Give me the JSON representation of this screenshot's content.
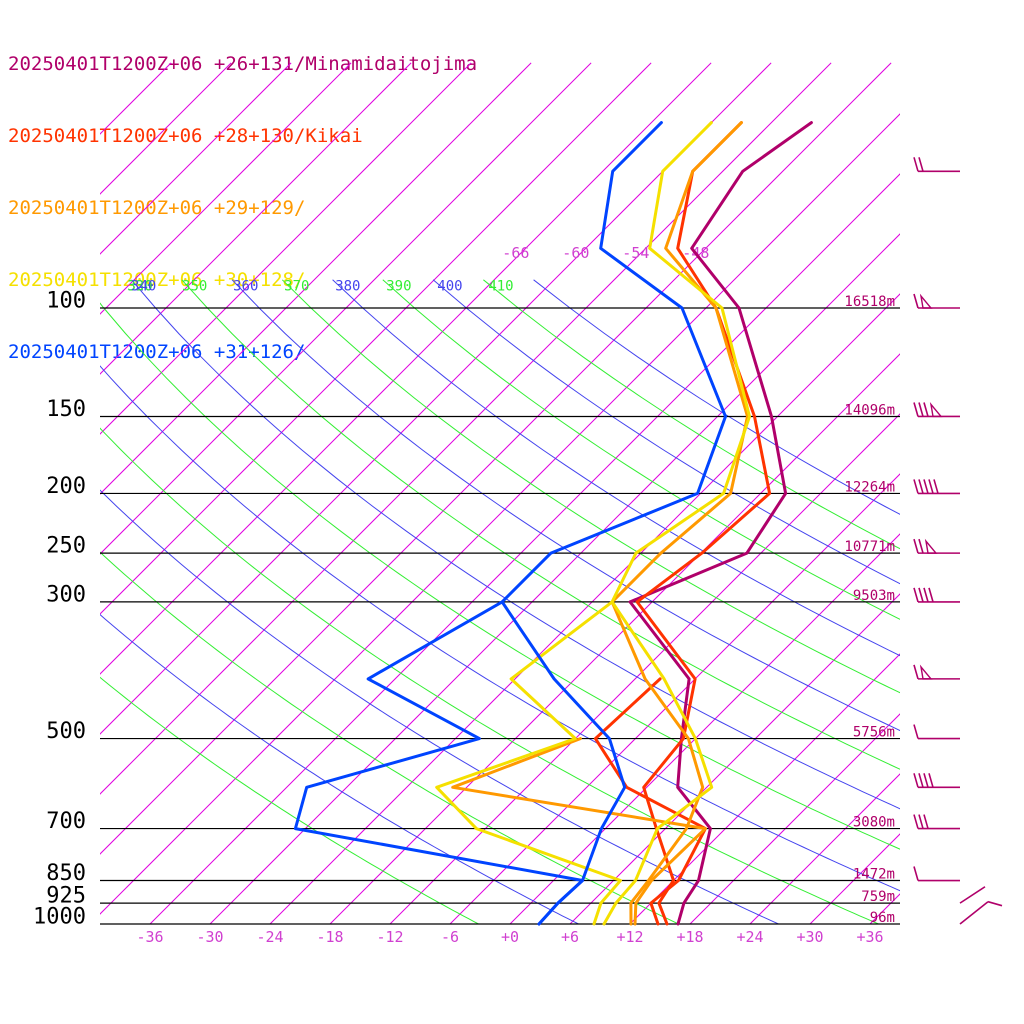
{
  "chart_data": {
    "type": "line",
    "legend": [
      {
        "time": "20250401T1200Z+06",
        "loc": "+26+131/Minamidaitojima",
        "color": "#b0006a"
      },
      {
        "time": "20250401T1200Z+06",
        "loc": "+28+130/Kikai",
        "color": "#ff3300"
      },
      {
        "time": "20250401T1200Z+06",
        "loc": "+29+129/",
        "color": "#ff9900"
      },
      {
        "time": "20250401T1200Z+06",
        "loc": "+30+128/",
        "color": "#f5e000"
      },
      {
        "time": "20250401T1200Z+06",
        "loc": "+31+126/",
        "color": "#0044ff"
      }
    ],
    "pressure_levels": [
      {
        "p": 100,
        "label": "100",
        "height": "16518m"
      },
      {
        "p": 150,
        "label": "150",
        "height": "14096m"
      },
      {
        "p": 200,
        "label": "200",
        "height": "12264m"
      },
      {
        "p": 250,
        "label": "250",
        "height": "10771m"
      },
      {
        "p": 300,
        "label": "300",
        "height": "9503m"
      },
      {
        "p": 500,
        "label": "500",
        "height": "5756m"
      },
      {
        "p": 700,
        "label": "700",
        "height": "3080m"
      },
      {
        "p": 850,
        "label": "850",
        "height": "1472m"
      },
      {
        "p": 925,
        "label": "925",
        "height": "759m"
      },
      {
        "p": 1000,
        "label": "1000",
        "height": "96m"
      }
    ],
    "x_ticks": [
      "-36",
      "-30",
      "-24",
      "-18",
      "-12",
      "-6",
      "+0",
      "+6",
      "+12",
      "+18",
      "+24",
      "+30",
      "+36"
    ],
    "x_tick_values": [
      -36,
      -30,
      -24,
      -18,
      -12,
      -6,
      0,
      6,
      12,
      18,
      24,
      30,
      36
    ],
    "upper_isotherm_labels": [
      "-66",
      "-60",
      "-54",
      "-48"
    ],
    "theta_labels": [
      {
        "text": "320",
        "kind": "dry"
      },
      {
        "text": "330",
        "kind": "moist"
      },
      {
        "text": "340",
        "kind": "dry"
      },
      {
        "text": "350",
        "kind": "moist"
      },
      {
        "text": "360",
        "kind": "dry"
      },
      {
        "text": "370",
        "kind": "moist"
      },
      {
        "text": "380",
        "kind": "dry"
      },
      {
        "text": "390",
        "kind": "moist"
      },
      {
        "text": "400",
        "kind": "dry"
      },
      {
        "text": "410",
        "kind": "moist"
      }
    ],
    "colors": {
      "isotherm": "#e000e0",
      "dry_adiabat": "#4444ee",
      "moist_adiabat": "#33ee33",
      "isobar": "#000000",
      "tick_label": "#d040d0",
      "height_label": "#b0006a",
      "pressure_label": "#000000",
      "barb": "#b0006a"
    },
    "series": [
      {
        "name": "+26+131/Minamidaitojima",
        "color": "#b0006a",
        "temperature": [
          [
            1000,
            16.8
          ],
          [
            925,
            15.3
          ],
          [
            850,
            14.5
          ],
          [
            700,
            10.5
          ],
          [
            600,
            3.1
          ],
          [
            500,
            -1.4
          ],
          [
            400,
            -6.6
          ],
          [
            300,
            -20.2
          ]
        ],
        "dewpoint": [
          [
            300,
            -20.2
          ],
          [
            250,
            -13.4
          ],
          [
            200,
            -15.5
          ],
          [
            150,
            -24.6
          ],
          [
            100,
            -38.7
          ],
          [
            80,
            -49.4
          ],
          [
            60,
            -52.0
          ],
          [
            50,
            -50.0
          ]
        ]
      },
      {
        "name": "+28+130/Kikai",
        "color": "#ff3300",
        "temperature": [
          [
            1000,
            15.7
          ],
          [
            925,
            12.8
          ],
          [
            850,
            12.0
          ],
          [
            700,
            5.1
          ],
          [
            600,
            -0.3
          ],
          [
            500,
            -1.2
          ],
          [
            400,
            -6.0
          ],
          [
            300,
            -19.5
          ],
          [
            250,
            -17.9
          ],
          [
            200,
            -17.1
          ],
          [
            150,
            -26.3
          ],
          [
            100,
            -41.0
          ],
          [
            80,
            -50.8
          ],
          [
            60,
            -57.0
          ],
          [
            50,
            -57.0
          ]
        ],
        "dewpoint": [
          [
            1000,
            14.8
          ],
          [
            925,
            12.0
          ],
          [
            850,
            12.5
          ],
          [
            700,
            10.0
          ],
          [
            600,
            -2.0
          ],
          [
            500,
            -10.0
          ],
          [
            400,
            -9.5
          ]
        ]
      },
      {
        "name": "+29+129/",
        "color": "#ff9900",
        "temperature": [
          [
            1000,
            12.1
          ],
          [
            925,
            10.0
          ],
          [
            850,
            9.5
          ],
          [
            700,
            8.1
          ],
          [
            600,
            5.6
          ],
          [
            500,
            -0.7
          ],
          [
            400,
            -11.0
          ],
          [
            300,
            -22.0
          ],
          [
            250,
            -22.0
          ],
          [
            200,
            -21.0
          ],
          [
            150,
            -27.0
          ],
          [
            100,
            -41.0
          ],
          [
            80,
            -52.0
          ],
          [
            60,
            -57.0
          ],
          [
            50,
            -57.0
          ]
        ],
        "dewpoint": [
          [
            1000,
            12.5
          ],
          [
            925,
            10.5
          ],
          [
            850,
            9.8
          ],
          [
            700,
            10.0
          ],
          [
            600,
            -19.4
          ],
          [
            500,
            -11.5
          ]
        ]
      },
      {
        "name": "+30+128/",
        "color": "#f5e000",
        "temperature": [
          [
            1000,
            9.4
          ],
          [
            925,
            8.5
          ],
          [
            850,
            8.2
          ],
          [
            700,
            5.2
          ],
          [
            600,
            6.5
          ],
          [
            500,
            0.0
          ],
          [
            400,
            -9.1
          ],
          [
            300,
            -22.0
          ],
          [
            250,
            -24.5
          ],
          [
            200,
            -21.7
          ],
          [
            150,
            -26.8
          ],
          [
            100,
            -40.4
          ],
          [
            80,
            -53.6
          ],
          [
            60,
            -60.0
          ],
          [
            50,
            -60.0
          ]
        ],
        "dewpoint": [
          [
            1000,
            8.4
          ],
          [
            925,
            7.0
          ],
          [
            850,
            6.7
          ],
          [
            700,
            -12.9
          ],
          [
            600,
            -21.0
          ],
          [
            500,
            -12.0
          ],
          [
            400,
            -24.4
          ],
          [
            300,
            -22.0
          ]
        ]
      },
      {
        "name": "+31+126/",
        "color": "#0044ff",
        "temperature": [
          [
            1000,
            2.9
          ],
          [
            925,
            2.7
          ],
          [
            850,
            2.9
          ],
          [
            700,
            -0.4
          ],
          [
            600,
            -2.2
          ],
          [
            500,
            -8.6
          ],
          [
            400,
            -20.1
          ],
          [
            300,
            -33.0
          ],
          [
            250,
            -33.0
          ],
          [
            200,
            -24.3
          ],
          [
            150,
            -29.2
          ],
          [
            100,
            -44.4
          ],
          [
            80,
            -58.5
          ],
          [
            60,
            -65.0
          ],
          [
            50,
            -65.0
          ]
        ],
        "dewpoint": [
          [
            1000,
            2.9
          ],
          [
            925,
            2.7
          ],
          [
            850,
            2.9
          ],
          [
            700,
            -31.0
          ],
          [
            600,
            -34.0
          ],
          [
            500,
            -21.6
          ],
          [
            400,
            -38.7
          ],
          [
            300,
            -33.0
          ]
        ]
      }
    ],
    "wind_barbs": [
      {
        "p": 60,
        "barbs": 2
      },
      {
        "p": 100,
        "barbs": 1,
        "flag": true
      },
      {
        "p": 150,
        "barbs": 3,
        "flag": true
      },
      {
        "p": 200,
        "barbs": 5
      },
      {
        "p": 250,
        "barbs": 2,
        "flag": true
      },
      {
        "p": 300,
        "barbs": 4
      },
      {
        "p": 400,
        "barbs": 1,
        "flag": true
      },
      {
        "p": 500,
        "barbs": 1
      },
      {
        "p": 600,
        "barbs": 4
      },
      {
        "p": 700,
        "barbs": 3
      },
      {
        "p": 850,
        "barbs": 1
      }
    ]
  }
}
